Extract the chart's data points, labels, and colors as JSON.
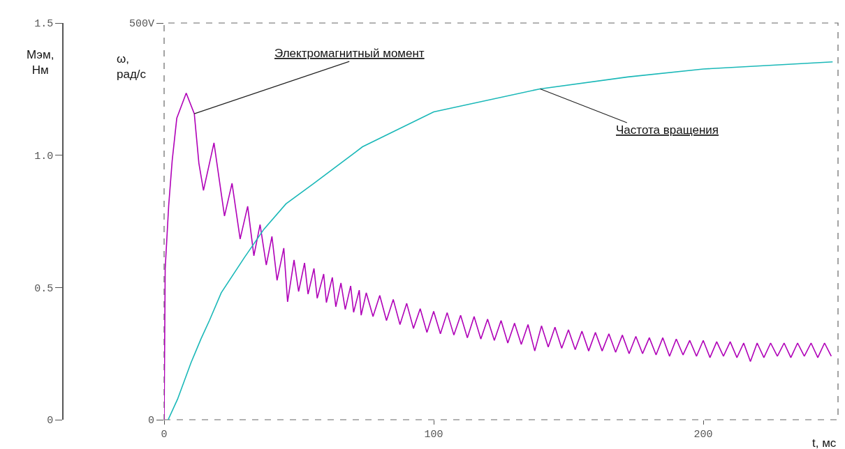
{
  "chart_data": {
    "type": "line",
    "xlabel": "t, мс",
    "ylabel": "Мэм, Нм",
    "y2label": "ω, рад/с",
    "xlim": [
      0,
      250
    ],
    "xticks": [
      0,
      100,
      200
    ],
    "ylim": [
      0,
      1.5
    ],
    "yticks": [
      0,
      0.5,
      {
        "value": 1,
        "label": "1.0"
      },
      1.5
    ],
    "y2lim": [
      0,
      500
    ],
    "y2ticks": [
      0,
      {
        "value": 500,
        "label": "500V"
      }
    ],
    "marker": "none",
    "line_style": "solid",
    "annotations": [
      {
        "text": "Электромагнитный момент",
        "x": 11.2,
        "y": 1.157
      },
      {
        "text": "Частота вращения",
        "x": 139.5,
        "y": 1.251
      }
    ],
    "series": [
      {
        "color": "#b000b8",
        "axis": "y",
        "x": [
          0,
          0.4,
          1.7,
          3,
          4.7,
          8.2,
          11.2,
          12.9,
          14.6,
          18.5,
          22.4,
          25.2,
          28.2,
          31,
          33.3,
          35.6,
          37.9,
          40,
          41.9,
          44.4,
          45.8,
          48.2,
          49.9,
          52.1,
          53.4,
          55.6,
          56.8,
          59.2,
          60.2,
          62.4,
          63.7,
          65.6,
          67.2,
          69.2,
          70.3,
          72.4,
          73.1,
          75,
          77.5,
          80,
          82.5,
          85,
          87.5,
          90,
          92.5,
          95,
          97.5,
          100,
          102.5,
          105,
          107.5,
          110,
          112.5,
          115,
          117.5,
          120,
          122.5,
          125,
          127.5,
          130,
          132.5,
          135,
          137.5,
          140,
          142.5,
          145,
          147.5,
          150,
          152.5,
          155,
          157.5,
          160,
          162.5,
          165,
          167.5,
          170,
          172.5,
          175,
          177.5,
          180,
          182.5,
          185,
          187.5,
          190,
          192.5,
          195,
          197.5,
          200,
          202.5,
          205,
          207.5,
          210,
          212.5,
          215,
          217.5,
          220,
          222.5,
          225,
          227.5,
          230,
          232.5,
          235,
          237.5,
          240,
          242.5,
          245,
          247.5
        ],
        "values": [
          0,
          0.57,
          0.81,
          0.98,
          1.14,
          1.235,
          1.157,
          0.97,
          0.867,
          1.047,
          0.77,
          0.894,
          0.683,
          0.807,
          0.62,
          0.738,
          0.585,
          0.693,
          0.527,
          0.649,
          0.446,
          0.604,
          0.485,
          0.593,
          0.475,
          0.572,
          0.459,
          0.551,
          0.443,
          0.538,
          0.427,
          0.517,
          0.417,
          0.506,
          0.406,
          0.49,
          0.395,
          0.48,
          0.39,
          0.47,
          0.375,
          0.455,
          0.36,
          0.44,
          0.345,
          0.42,
          0.33,
          0.41,
          0.325,
          0.405,
          0.32,
          0.395,
          0.31,
          0.39,
          0.305,
          0.38,
          0.3,
          0.375,
          0.29,
          0.365,
          0.285,
          0.36,
          0.26,
          0.355,
          0.275,
          0.35,
          0.27,
          0.34,
          0.265,
          0.335,
          0.26,
          0.33,
          0.26,
          0.325,
          0.255,
          0.32,
          0.25,
          0.315,
          0.25,
          0.31,
          0.245,
          0.31,
          0.24,
          0.305,
          0.245,
          0.3,
          0.24,
          0.3,
          0.235,
          0.295,
          0.24,
          0.295,
          0.235,
          0.29,
          0.22,
          0.29,
          0.235,
          0.29,
          0.24,
          0.29,
          0.235,
          0.29,
          0.24,
          0.29,
          0.235,
          0.29,
          0.24
        ]
      },
      {
        "color": "#1ab8b8",
        "axis": "y2",
        "x": [
          1.5,
          5,
          10,
          13.7,
          16.8,
          21.2,
          29.7,
          37,
          45.2,
          55.6,
          73.6,
          100,
          139.5,
          172,
          200,
          248
        ],
        "values": [
          0,
          26,
          72,
          102,
          125,
          160,
          204,
          240,
          272,
          298,
          344,
          388,
          417,
          432,
          442,
          451
        ]
      }
    ]
  }
}
